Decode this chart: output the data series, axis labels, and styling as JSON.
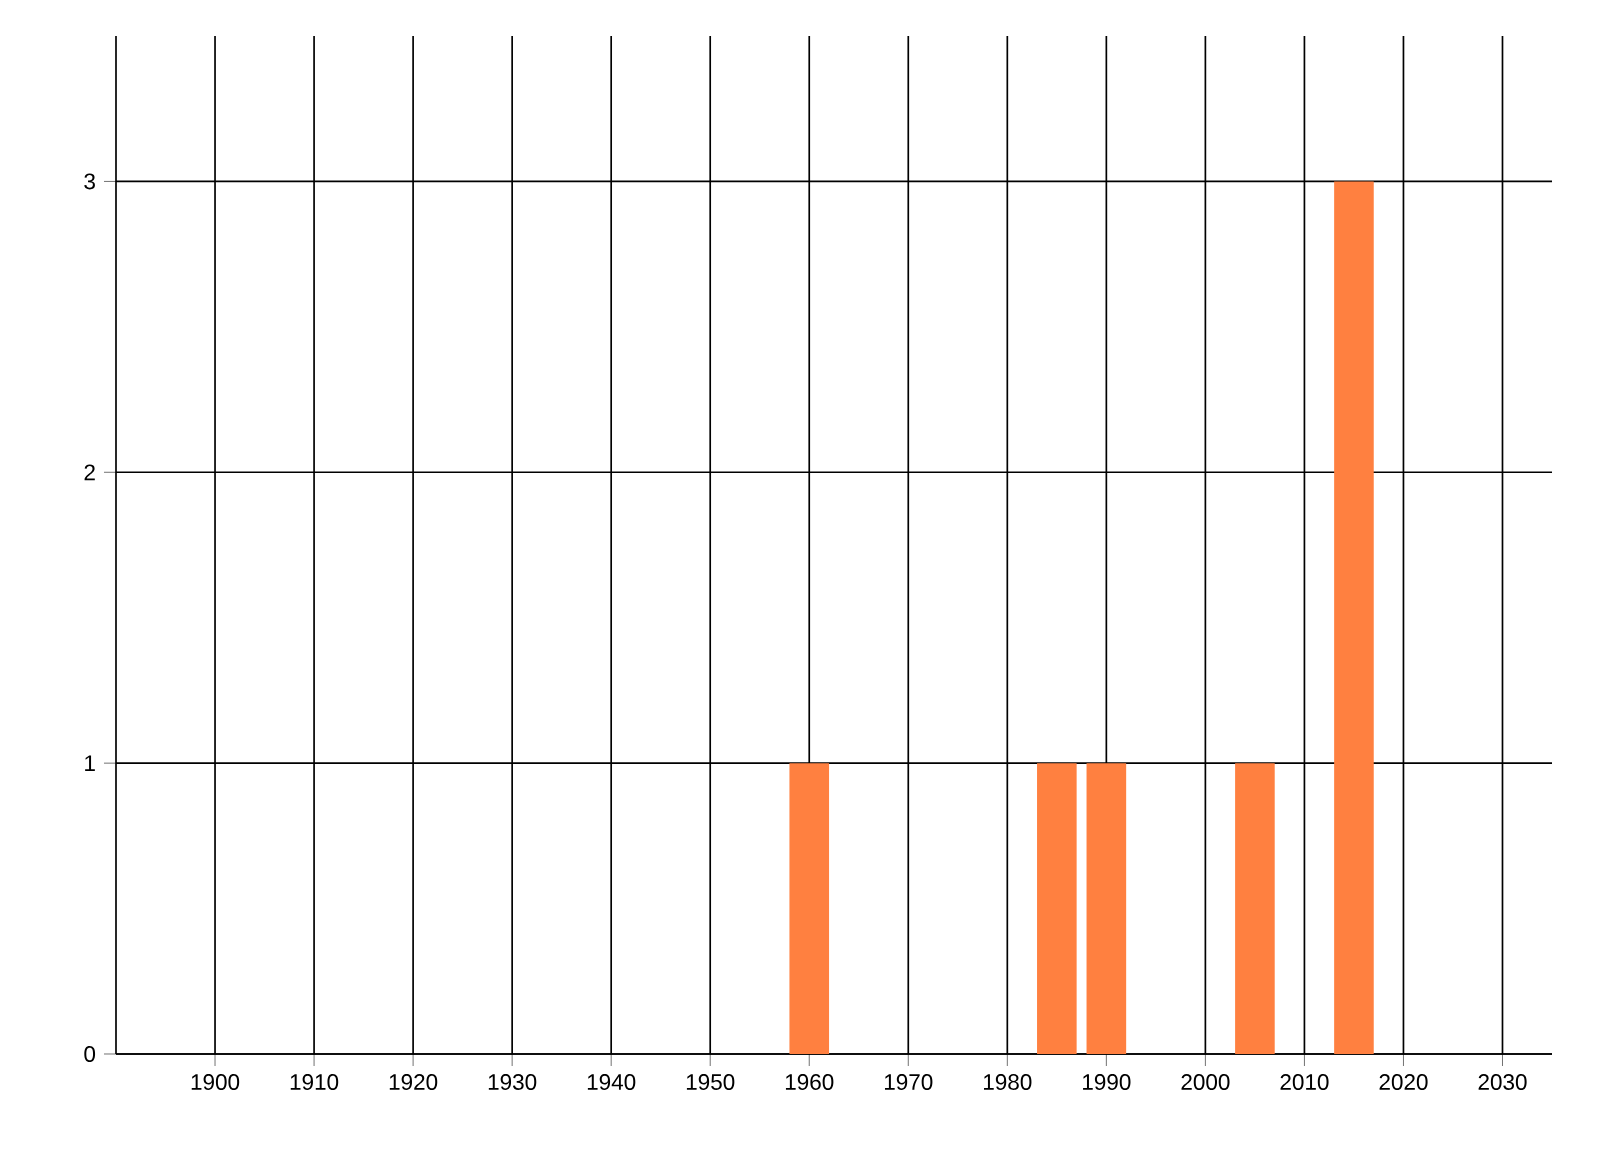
{
  "chart_data": {
    "type": "bar",
    "x": [
      1960,
      1985,
      1990,
      2005,
      2015
    ],
    "values": [
      1,
      1,
      1,
      1,
      3
    ],
    "color": "#ff8040",
    "xlim": [
      1890,
      2035
    ],
    "ylim": [
      0,
      3.5
    ],
    "xticks": [
      1900,
      1910,
      1920,
      1930,
      1940,
      1950,
      1960,
      1970,
      1980,
      1990,
      2000,
      2010,
      2020,
      2030
    ],
    "yticks": [
      0,
      1,
      2,
      3
    ],
    "grid": true
  }
}
